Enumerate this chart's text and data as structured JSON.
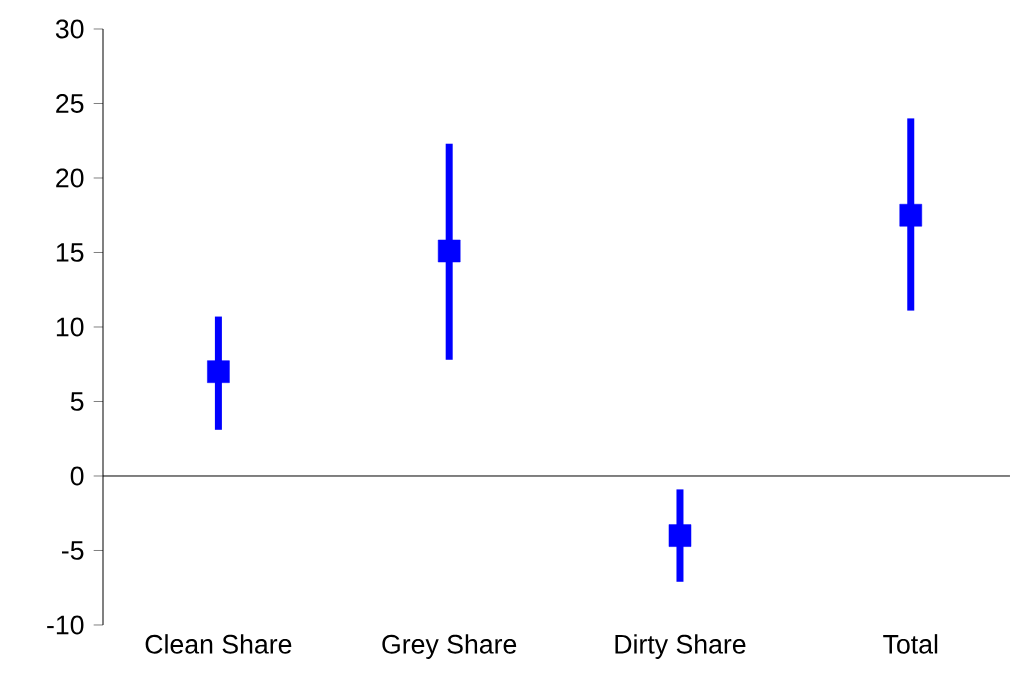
{
  "chart_data": {
    "type": "scatter",
    "categories": [
      "Clean Share",
      "Grey Share",
      "Dirty Share",
      "Total"
    ],
    "series": [
      {
        "color": "#0000ff",
        "values": [
          7.0,
          15.1,
          -4.0,
          17.5
        ],
        "errors": [
          [
            3.1,
            10.7
          ],
          [
            7.8,
            22.3
          ],
          [
            -7.1,
            -0.9
          ],
          [
            11.1,
            24.0
          ]
        ]
      }
    ],
    "marker": "square",
    "ylim": [
      -10,
      30
    ],
    "yticks": [
      -10,
      -5,
      0,
      5,
      10,
      15,
      20,
      25,
      30
    ]
  }
}
